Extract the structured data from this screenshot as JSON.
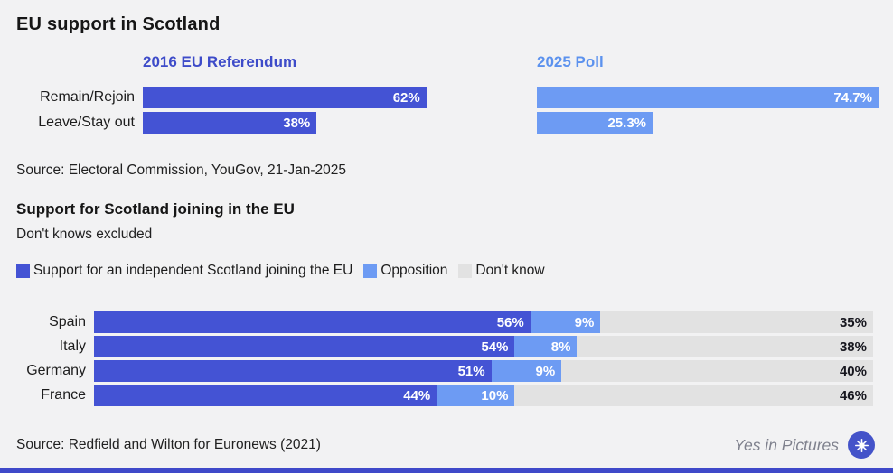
{
  "palette": {
    "background": "#f2f2f3",
    "support_blue": "#4453d4",
    "opposition_blue": "#6d9bf3",
    "dont_know_gray": "#e2e2e2",
    "header_2016_color": "#3e4cc9",
    "header_2025_color": "#5c92ee",
    "stripe_blue": "#3f49c9",
    "logo_blue": "#4453c9"
  },
  "chart_data": [
    {
      "type": "bar",
      "title": "EU support in Scotland",
      "categories": [
        "Remain/Rejoin",
        "Leave/Stay out"
      ],
      "groups": [
        {
          "label": "2016 EU Referendum",
          "color": "#4453d4",
          "values": [
            62,
            38
          ]
        },
        {
          "label": "2025 Poll",
          "color": "#6d9bf3",
          "values": [
            74.7,
            25.3
          ]
        }
      ],
      "value_suffix": "%",
      "xlim": [
        0,
        100
      ],
      "grid": false,
      "source": "Source: Electoral Commission, YouGov, 21-Jan-2025"
    },
    {
      "type": "bar",
      "stacked": true,
      "title": "Support for Scotland joining in the EU",
      "subtitle": "Don't knows excluded",
      "categories": [
        "Spain",
        "Italy",
        "Germany",
        "France"
      ],
      "series": [
        {
          "name": "Support for an independent Scotland joining the EU",
          "color": "#4453d4",
          "values": [
            56,
            54,
            51,
            44
          ]
        },
        {
          "name": "Opposition",
          "color": "#6d9bf3",
          "values": [
            9,
            8,
            9,
            10
          ]
        },
        {
          "name": "Don't know",
          "color": "#e2e2e2",
          "values": [
            35,
            38,
            40,
            46
          ]
        }
      ],
      "value_suffix": "%",
      "xlim": [
        0,
        100
      ],
      "legend_position": "top",
      "grid": false,
      "source": "Source: Redfield and Wilton for Euronews (2021)"
    }
  ],
  "footer": {
    "brand": "Yes in Pictures"
  }
}
